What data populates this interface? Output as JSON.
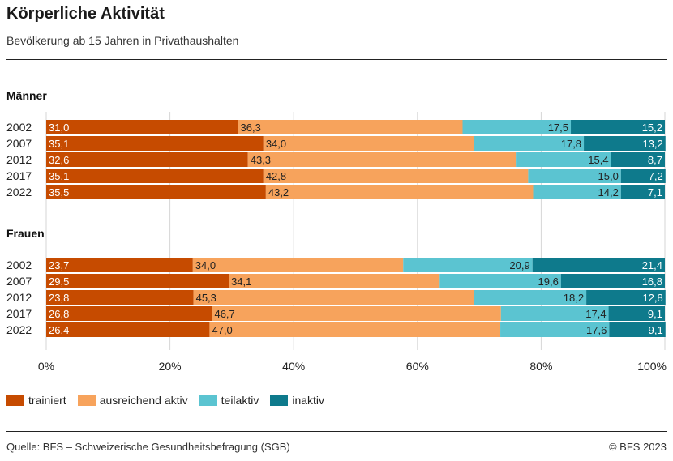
{
  "header": {
    "title": "Körperliche Aktivität",
    "subtitle": "Bevölkerung ab 15 Jahren in Privathaushalten"
  },
  "footer": {
    "source": "Quelle: BFS – Schweizerische Gesundheitsbefragung (SGB)",
    "copyright": "© BFS 2023"
  },
  "chart_data": {
    "type": "bar",
    "orientation": "horizontal",
    "stacked": true,
    "title": "Körperliche Aktivität",
    "subtitle": "Bevölkerung ab 15 Jahren in Privathaushalten",
    "xlim": [
      0,
      100
    ],
    "x_ticks": [
      "0%",
      "20%",
      "40%",
      "60%",
      "80%",
      "100%"
    ],
    "legend_position": "bottom-left",
    "series": [
      {
        "name": "trainiert",
        "color": "#c64b00"
      },
      {
        "name": "ausreichend aktiv",
        "color": "#f7a35c"
      },
      {
        "name": "teilaktiv",
        "color": "#5bc4d1"
      },
      {
        "name": "inaktiv",
        "color": "#0e7a8c"
      }
    ],
    "groups": [
      {
        "name": "Männer",
        "rows": [
          {
            "year": "2002",
            "values": [
              31.0,
              36.3,
              17.5,
              15.2
            ],
            "labels": [
              "31,0",
              "36,3",
              "17,5",
              "15,2"
            ]
          },
          {
            "year": "2007",
            "values": [
              35.1,
              34.0,
              17.8,
              13.2
            ],
            "labels": [
              "35,1",
              "34,0",
              "17,8",
              "13,2"
            ]
          },
          {
            "year": "2012",
            "values": [
              32.6,
              43.3,
              15.4,
              8.7
            ],
            "labels": [
              "32,6",
              "43,3",
              "15,4",
              "8,7"
            ]
          },
          {
            "year": "2017",
            "values": [
              35.1,
              42.8,
              15.0,
              7.2
            ],
            "labels": [
              "35,1",
              "42,8",
              "15,0",
              "7,2"
            ]
          },
          {
            "year": "2022",
            "values": [
              35.5,
              43.2,
              14.2,
              7.1
            ],
            "labels": [
              "35,5",
              "43,2",
              "14,2",
              "7,1"
            ]
          }
        ]
      },
      {
        "name": "Frauen",
        "rows": [
          {
            "year": "2002",
            "values": [
              23.7,
              34.0,
              20.9,
              21.4
            ],
            "labels": [
              "23,7",
              "34,0",
              "20,9",
              "21,4"
            ]
          },
          {
            "year": "2007",
            "values": [
              29.5,
              34.1,
              19.6,
              16.8
            ],
            "labels": [
              "29,5",
              "34,1",
              "19,6",
              "16,8"
            ]
          },
          {
            "year": "2012",
            "values": [
              23.8,
              45.3,
              18.2,
              12.8
            ],
            "labels": [
              "23,8",
              "45,3",
              "18,2",
              "12,8"
            ]
          },
          {
            "year": "2017",
            "values": [
              26.8,
              46.7,
              17.4,
              9.1
            ],
            "labels": [
              "26,8",
              "46,7",
              "17,4",
              "9,1"
            ]
          },
          {
            "year": "2022",
            "values": [
              26.4,
              47.0,
              17.6,
              9.1
            ],
            "labels": [
              "26,4",
              "47,0",
              "17,6",
              "9,1"
            ]
          }
        ]
      }
    ]
  }
}
